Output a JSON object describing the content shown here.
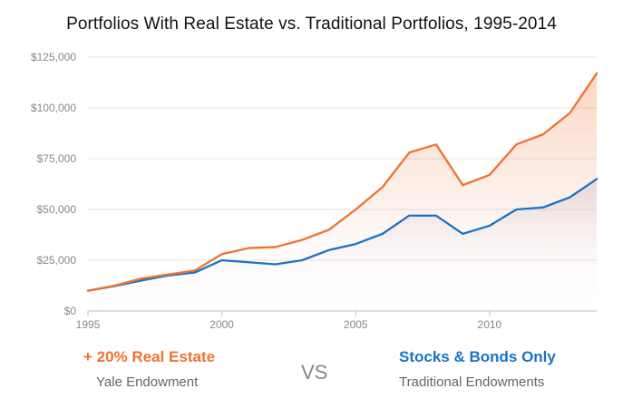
{
  "chart_data": {
    "type": "area",
    "title": "Portfolios With Real Estate vs. Traditional Portfolios, 1995-2014",
    "x": [
      1995,
      1996,
      1997,
      1998,
      1999,
      2000,
      2001,
      2002,
      2003,
      2004,
      2005,
      2006,
      2007,
      2008,
      2009,
      2010,
      2011,
      2012,
      2013,
      2014
    ],
    "series": [
      {
        "name": "+ 20% Real Estate",
        "color": "#f07230",
        "values": [
          10000,
          12500,
          16000,
          18000,
          20000,
          28000,
          31000,
          31500,
          35000,
          40000,
          50000,
          61000,
          78000,
          82000,
          62000,
          67000,
          82000,
          87000,
          97500,
          117000
        ]
      },
      {
        "name": "Stocks & Bonds Only",
        "color": "#1a72c9",
        "values": [
          10000,
          12300,
          15000,
          17500,
          19000,
          25000,
          24000,
          23000,
          25000,
          30000,
          33000,
          38000,
          47000,
          47000,
          38000,
          42000,
          50000,
          51000,
          56000,
          65000
        ]
      }
    ],
    "ylim": [
      0,
      125000
    ],
    "yticks": [
      0,
      25000,
      50000,
      75000,
      100000,
      125000
    ],
    "ytick_labels": [
      "$0",
      "$25,000",
      "$50,000",
      "$75,000",
      "$100,000",
      "$125,000"
    ],
    "xticks": [
      1995,
      2000,
      2005,
      2010
    ],
    "xtick_labels": [
      "1995",
      "2000",
      "2005",
      "2010"
    ],
    "grid": true,
    "xlabel": "",
    "ylabel": ""
  },
  "legend": {
    "left_main": "+ 20% Real Estate",
    "left_sub": "Yale Endowment",
    "vs": "VS",
    "right_main": "Stocks & Bonds Only",
    "right_sub": "Traditional Endowments"
  }
}
